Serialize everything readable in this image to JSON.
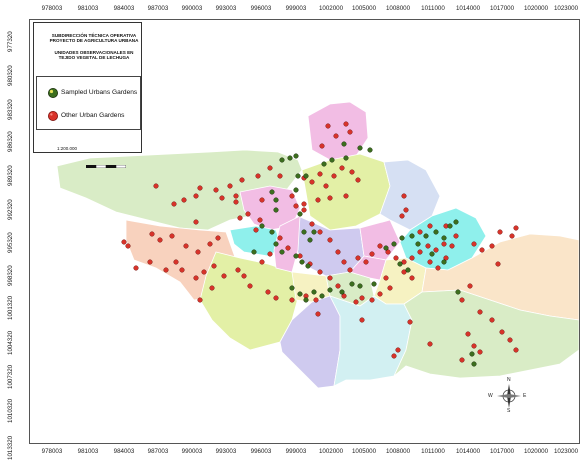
{
  "map": {
    "x_ticks": [
      "978003",
      "981003",
      "984003",
      "987003",
      "990003",
      "993003",
      "996003",
      "999003",
      "1002000",
      "1005000",
      "1008000",
      "1011000",
      "1014000",
      "1017000",
      "1020000",
      "1023000"
    ],
    "y_ticks": [
      "977320",
      "980320",
      "983320",
      "986320",
      "989320",
      "992320",
      "995320",
      "998320",
      "1001320",
      "1004320",
      "1007320",
      "1010320",
      "1013320"
    ],
    "legend": {
      "title_lines": [
        "SUBDIRECCIÓN TÉCNICA OPERATIVA",
        "PROYECTO DE AGRICULTURA URBANA",
        "",
        "UNIDADES OBSERVACIONALES EN",
        "TEJIDO VEGETAL DE LECHUGA"
      ],
      "sampled_label": "Sampled Urbans Gardens",
      "other_label": "Other Urban Gardens",
      "scale": "1:200.000"
    },
    "compass": {
      "n": "N",
      "s": "S",
      "e": "E",
      "w": "W"
    },
    "colors": {
      "sampled_marker": "#3c6e1e",
      "other_marker": "#d8332a",
      "district_green": "#d9ecc6",
      "district_salmon": "#f8d2be",
      "district_yellow_green": "#e3f0a6",
      "district_pink": "#f2bde4",
      "district_blue": "#d6e0f3",
      "district_cyan": "#8ff0ec",
      "district_lavender": "#cfcaef",
      "district_light_cyan": "#d2f0f2",
      "district_peach": "#fae5c9",
      "district_light_yellow": "#f6f2c2"
    }
  }
}
